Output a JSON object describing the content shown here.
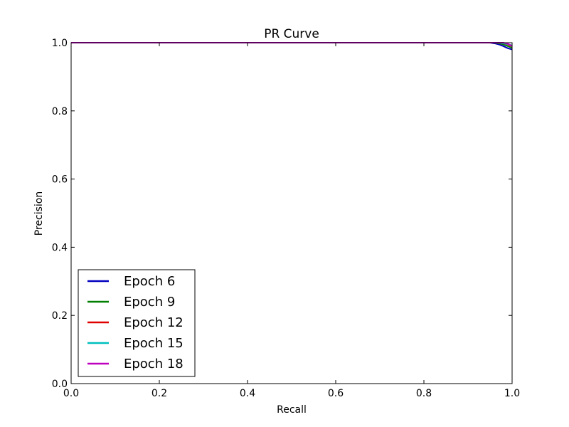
{
  "chart_data": {
    "type": "line",
    "title": "PR Curve",
    "xlabel": "Recall",
    "ylabel": "Precision",
    "xlim": [
      0.0,
      1.0
    ],
    "ylim": [
      0.0,
      1.0
    ],
    "xticks": [
      "0.0",
      "0.2",
      "0.4",
      "0.6",
      "0.8",
      "1.0"
    ],
    "yticks": [
      "0.0",
      "0.2",
      "0.4",
      "0.6",
      "0.8",
      "1.0"
    ],
    "grid": false,
    "legend_position": "lower-left",
    "series": [
      {
        "name": "Epoch 6",
        "color": "#0000bf",
        "points": [
          [
            0.0,
            1.0
          ],
          [
            0.95,
            1.0
          ],
          [
            0.96,
            0.998
          ],
          [
            0.97,
            0.995
          ],
          [
            0.98,
            0.99
          ],
          [
            0.99,
            0.984
          ],
          [
            1.0,
            0.98
          ]
        ]
      },
      {
        "name": "Epoch 9",
        "color": "#007f00",
        "points": [
          [
            0.0,
            1.0
          ],
          [
            0.96,
            1.0
          ],
          [
            0.97,
            0.998
          ],
          [
            0.98,
            0.995
          ],
          [
            0.99,
            0.99
          ],
          [
            1.0,
            0.985
          ]
        ]
      },
      {
        "name": "Epoch 12",
        "color": "#e00000",
        "points": [
          [
            0.0,
            1.0
          ],
          [
            0.97,
            1.0
          ],
          [
            0.98,
            0.998
          ],
          [
            0.99,
            0.995
          ],
          [
            1.0,
            0.99
          ]
        ]
      },
      {
        "name": "Epoch 15",
        "color": "#00bfbf",
        "points": [
          [
            0.0,
            1.0
          ],
          [
            0.97,
            1.0
          ],
          [
            0.98,
            0.998
          ],
          [
            0.99,
            0.996
          ],
          [
            1.0,
            0.992
          ]
        ]
      },
      {
        "name": "Epoch 18",
        "color": "#bf00bf",
        "points": [
          [
            0.0,
            1.0
          ],
          [
            0.98,
            1.0
          ],
          [
            0.99,
            0.997
          ],
          [
            1.0,
            0.99
          ]
        ]
      }
    ]
  }
}
